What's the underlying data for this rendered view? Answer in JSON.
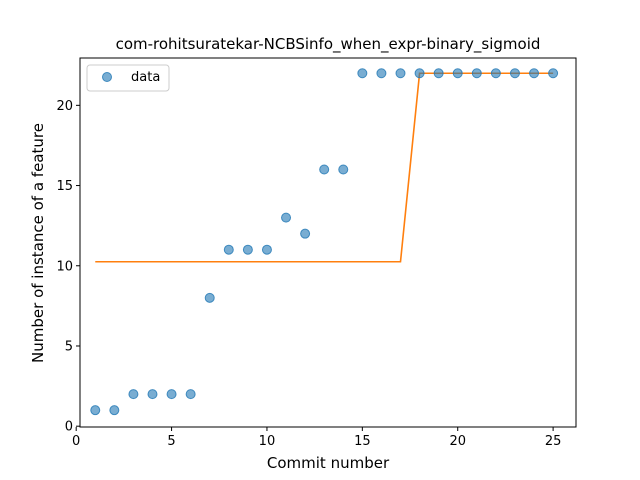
{
  "chart_data": {
    "type": "scatter",
    "title": "com-rohitsuratekar-NCBSinfo_when_expr-binary_sigmoid",
    "xlabel": "Commit number",
    "ylabel": "Number of instance of a feature",
    "xlim": [
      0.2,
      26.2
    ],
    "ylim": [
      -0.05,
      22.95
    ],
    "xticks": [
      0,
      5,
      10,
      15,
      20,
      25
    ],
    "yticks": [
      0,
      5,
      10,
      15,
      20
    ],
    "legend": {
      "placement": "top-left",
      "entries": [
        "data"
      ]
    },
    "grid": false,
    "series": [
      {
        "name": "data",
        "kind": "scatter",
        "color": "#1f77b4",
        "x": [
          1,
          2,
          3,
          4,
          5,
          6,
          7,
          8,
          9,
          10,
          11,
          12,
          13,
          14,
          15,
          16,
          17,
          18,
          19,
          20,
          21,
          22,
          23,
          24,
          25
        ],
        "y": [
          1,
          1,
          2,
          2,
          2,
          2,
          8,
          11,
          11,
          11,
          13,
          12,
          16,
          16,
          22,
          22,
          22,
          22,
          22,
          22,
          22,
          22,
          22,
          22,
          22
        ]
      },
      {
        "kind": "line",
        "color": "#ff7f0e",
        "x": [
          1,
          17,
          18,
          25
        ],
        "y": [
          10.25,
          10.25,
          22,
          22
        ]
      }
    ]
  }
}
